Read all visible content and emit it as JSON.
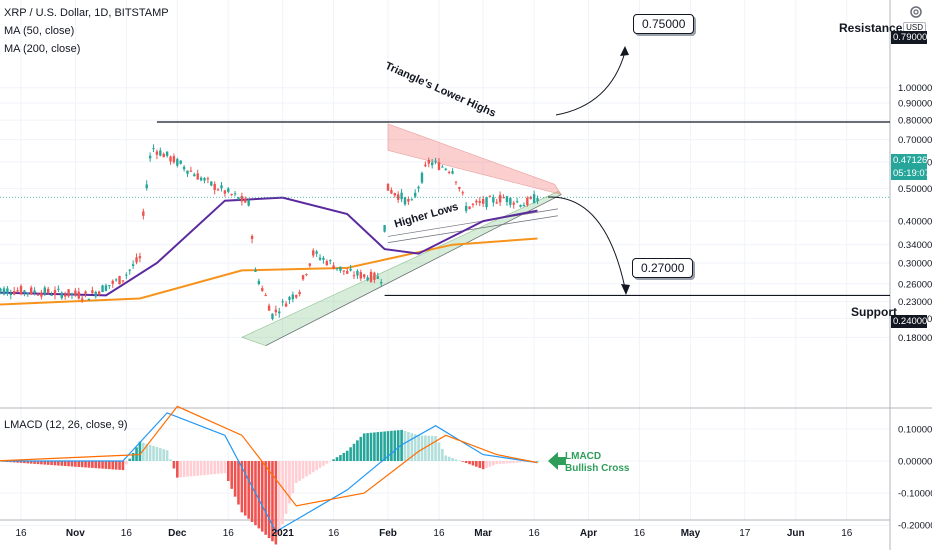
{
  "legend": {
    "symbol": "XRP / U.S. Dollar, 1D, BITSTAMP",
    "ma50": "MA (50, close)",
    "ma200": "MA (200, close)",
    "lmacd": "LMACD (12, 26, close, 9)"
  },
  "toolbar": {
    "currency": "USD",
    "settings_icon": "gear-icon"
  },
  "annotations": {
    "resistance": "Resistance",
    "support": "Support",
    "triangle": "Triangle's Lower Highs",
    "higher_lows": "Higher Lows",
    "target_up": "0.75000",
    "target_down": "0.27000",
    "lmacd_note_1": "LMACD",
    "lmacd_note_2": "Bullish Cross"
  },
  "price_tags": {
    "resistance": "0.79000",
    "current": "0.47126",
    "countdown": "05:19:07",
    "support": "0.24000"
  },
  "colors": {
    "up": "#26a69a",
    "down": "#ef5350",
    "ma50": "#5b2a9e",
    "ma200": "#f7931a",
    "macd": "#2196f3",
    "signal": "#ff6d00",
    "triangle_fill": "rgba(76,175,80,0.22)",
    "lowerhighs_fill": "rgba(239,83,80,0.28)",
    "bullish_arrow": "#2e9e5a"
  },
  "chart_data": [
    {
      "type": "candlestick",
      "title": "XRP / U.S. Dollar, 1D, BITSTAMP",
      "scale": "log",
      "y_ticks": [
        0.18,
        0.205,
        0.23,
        0.26,
        0.3,
        0.34,
        0.4,
        0.5,
        0.6,
        0.7,
        0.8,
        0.9,
        1.0
      ],
      "y_tick_labels": [
        "0.18000",
        "0.20500",
        "0.23000",
        "0.26000",
        "0.30000",
        "0.34000",
        "0.40000",
        "0.50000",
        "0.60000",
        "0.70000",
        "0.80000",
        "0.90000",
        "1.00000"
      ],
      "x_ticks": [
        "16",
        "Nov",
        "16",
        "Dec",
        "16",
        "2021",
        "16",
        "Feb",
        "16",
        "Mar",
        "16",
        "Apr",
        "16",
        "May",
        "17",
        "Jun",
        "16"
      ],
      "x_tick_dates": [
        "2020-10-16",
        "2020-11-01",
        "2020-11-16",
        "2020-12-01",
        "2020-12-16",
        "2021-01-01",
        "2021-01-16",
        "2021-02-01",
        "2021-02-16",
        "2021-03-01",
        "2021-03-16",
        "2021-04-01",
        "2021-04-16",
        "2021-05-01",
        "2021-05-17",
        "2021-06-01",
        "2021-06-16"
      ],
      "date_range": [
        "2020-10-08",
        "2021-03-17"
      ],
      "ohlc_keypoints": [
        {
          "date": "2020-10-08",
          "close": 0.25
        },
        {
          "date": "2020-10-25",
          "close": 0.245
        },
        {
          "date": "2020-11-05",
          "close": 0.24
        },
        {
          "date": "2020-11-15",
          "close": 0.27
        },
        {
          "date": "2020-11-20",
          "close": 0.31
        },
        {
          "date": "2020-11-23",
          "close": 0.62
        },
        {
          "date": "2020-11-24",
          "close": 0.66
        },
        {
          "date": "2020-12-10",
          "close": 0.52
        },
        {
          "date": "2020-12-22",
          "close": 0.45
        },
        {
          "date": "2020-12-24",
          "close": 0.28
        },
        {
          "date": "2020-12-29",
          "close": 0.21
        },
        {
          "date": "2021-01-06",
          "close": 0.25
        },
        {
          "date": "2021-01-10",
          "close": 0.32
        },
        {
          "date": "2021-01-20",
          "close": 0.28
        },
        {
          "date": "2021-01-30",
          "close": 0.27
        },
        {
          "date": "2021-02-01",
          "close": 0.5
        },
        {
          "date": "2021-02-08",
          "close": 0.45
        },
        {
          "date": "2021-02-13",
          "close": 0.6
        },
        {
          "date": "2021-02-20",
          "close": 0.57
        },
        {
          "date": "2021-02-24",
          "close": 0.44
        },
        {
          "date": "2021-03-07",
          "close": 0.47
        },
        {
          "date": "2021-03-13",
          "close": 0.45
        },
        {
          "date": "2021-03-17",
          "close": 0.47126
        }
      ],
      "ma50_keypoints": [
        {
          "date": "2020-10-08",
          "value": 0.245
        },
        {
          "date": "2020-11-10",
          "value": 0.24
        },
        {
          "date": "2020-11-25",
          "value": 0.3
        },
        {
          "date": "2020-12-15",
          "value": 0.46
        },
        {
          "date": "2021-01-01",
          "value": 0.47
        },
        {
          "date": "2021-01-20",
          "value": 0.42
        },
        {
          "date": "2021-01-31",
          "value": 0.33
        },
        {
          "date": "2021-02-10",
          "value": 0.32
        },
        {
          "date": "2021-03-01",
          "value": 0.4
        },
        {
          "date": "2021-03-17",
          "value": 0.43
        }
      ],
      "ma200_keypoints": [
        {
          "date": "2020-10-08",
          "value": 0.225
        },
        {
          "date": "2020-11-20",
          "value": 0.235
        },
        {
          "date": "2020-12-20",
          "value": 0.285
        },
        {
          "date": "2021-01-20",
          "value": 0.29
        },
        {
          "date": "2021-02-20",
          "value": 0.34
        },
        {
          "date": "2021-03-17",
          "value": 0.355
        }
      ],
      "levels": {
        "resistance": 0.79,
        "support": 0.24,
        "current": 0.47126
      }
    },
    {
      "type": "histogram-line",
      "title": "LMACD (12, 26, close, 9)",
      "y_ticks": [
        0.1,
        0.0,
        -0.1,
        -0.2
      ],
      "y_tick_labels": [
        "0.10000",
        "0.00000",
        "-0.10000",
        "-0.20000"
      ],
      "series": [
        {
          "name": "LMACD",
          "keypoints": [
            {
              "date": "2020-10-08",
              "value": 0.0
            },
            {
              "date": "2020-11-15",
              "value": 0.0
            },
            {
              "date": "2020-11-28",
              "value": 0.15
            },
            {
              "date": "2020-12-15",
              "value": 0.08
            },
            {
              "date": "2020-12-30",
              "value": -0.22
            },
            {
              "date": "2021-01-20",
              "value": -0.09
            },
            {
              "date": "2021-02-05",
              "value": 0.05
            },
            {
              "date": "2021-02-15",
              "value": 0.11
            },
            {
              "date": "2021-03-01",
              "value": 0.02
            },
            {
              "date": "2021-03-17",
              "value": -0.005
            }
          ]
        },
        {
          "name": "Signal",
          "keypoints": [
            {
              "date": "2020-10-08",
              "value": 0.0
            },
            {
              "date": "2020-11-20",
              "value": 0.02
            },
            {
              "date": "2020-12-01",
              "value": 0.17
            },
            {
              "date": "2020-12-20",
              "value": 0.08
            },
            {
              "date": "2021-01-05",
              "value": -0.14
            },
            {
              "date": "2021-01-25",
              "value": -0.1
            },
            {
              "date": "2021-02-10",
              "value": 0.03
            },
            {
              "date": "2021-02-18",
              "value": 0.08
            },
            {
              "date": "2021-03-05",
              "value": 0.02
            },
            {
              "date": "2021-03-17",
              "value": -0.005
            }
          ]
        }
      ]
    }
  ]
}
